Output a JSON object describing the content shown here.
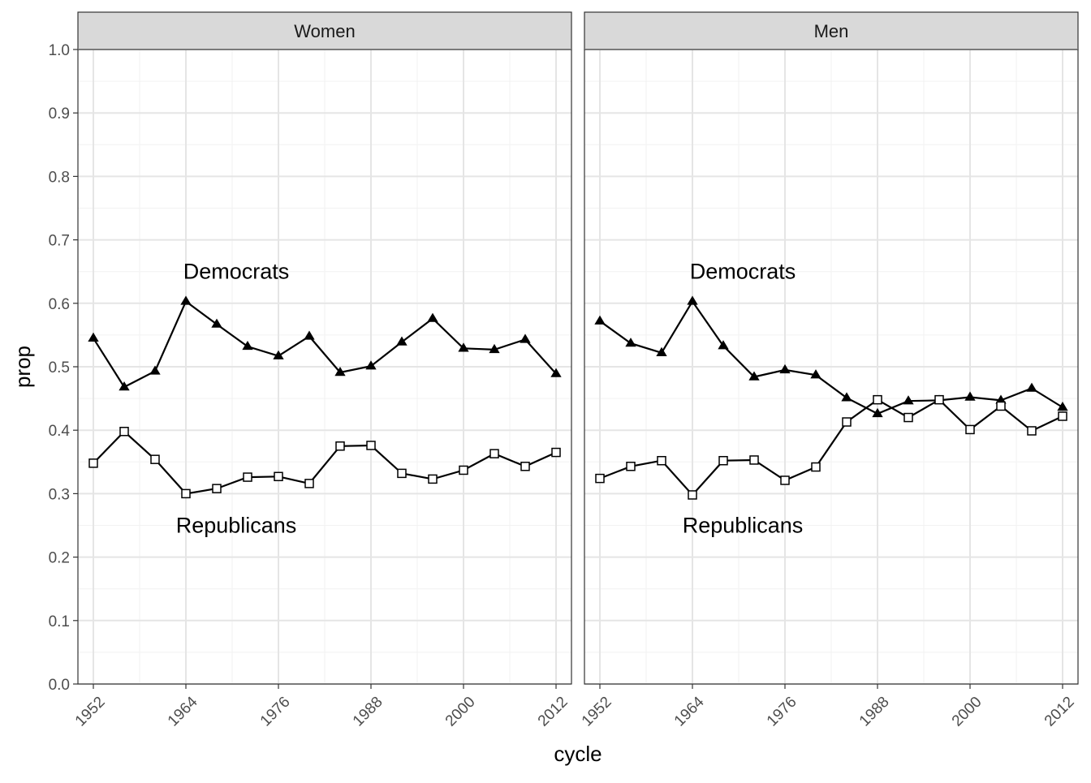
{
  "chart_data": {
    "type": "line",
    "xlabel": "cycle",
    "ylabel": "prop",
    "xlim": [
      1950,
      2014
    ],
    "ylim": [
      0,
      1
    ],
    "x_ticks": [
      "1952",
      "1964",
      "1976",
      "1988",
      "2000",
      "2012"
    ],
    "x_tick_values": [
      1952,
      1964,
      1976,
      1988,
      2000,
      2012
    ],
    "y_ticks": [
      "0.0",
      "0.1",
      "0.2",
      "0.3",
      "0.4",
      "0.5",
      "0.6",
      "0.7",
      "0.8",
      "0.9",
      "1.0"
    ],
    "y_tick_values": [
      0,
      0.1,
      0.2,
      0.3,
      0.4,
      0.5,
      0.6,
      0.7,
      0.8,
      0.9,
      1.0
    ],
    "grid": true,
    "x": [
      1952,
      1956,
      1960,
      1964,
      1968,
      1972,
      1976,
      1980,
      1984,
      1988,
      1992,
      1996,
      2000,
      2004,
      2008,
      2012
    ],
    "panels": [
      {
        "strip": "Women",
        "series": [
          {
            "name": "Democrats",
            "marker": "filled-triangle",
            "values": [
              0.545,
              0.468,
              0.493,
              0.603,
              0.567,
              0.532,
              0.517,
              0.548,
              0.491,
              0.501,
              0.539,
              0.576,
              0.529,
              0.527,
              0.543,
              0.489
            ]
          },
          {
            "name": "Republicans",
            "marker": "open-square",
            "values": [
              0.348,
              0.398,
              0.354,
              0.3,
              0.308,
              0.326,
              0.327,
              0.316,
              0.375,
              0.376,
              0.332,
              0.323,
              0.337,
              0.363,
              0.343,
              0.365
            ]
          }
        ],
        "labels": [
          {
            "text": "Democrats",
            "x": 1970,
            "y": 0.65
          },
          {
            "text": "Republicans",
            "x": 1970,
            "y": 0.25
          }
        ]
      },
      {
        "strip": "Men",
        "series": [
          {
            "name": "Democrats",
            "marker": "filled-triangle",
            "values": [
              0.572,
              0.537,
              0.522,
              0.603,
              0.533,
              0.484,
              0.495,
              0.487,
              0.451,
              0.426,
              0.446,
              0.447,
              0.452,
              0.447,
              0.466,
              0.436
            ]
          },
          {
            "name": "Republicans",
            "marker": "open-square",
            "values": [
              0.324,
              0.343,
              0.352,
              0.298,
              0.352,
              0.353,
              0.321,
              0.342,
              0.413,
              0.448,
              0.42,
              0.448,
              0.401,
              0.438,
              0.399,
              0.422
            ]
          }
        ],
        "labels": [
          {
            "text": "Democrats",
            "x": 1970,
            "y": 0.65
          },
          {
            "text": "Republicans",
            "x": 1970,
            "y": 0.25
          }
        ]
      }
    ]
  }
}
